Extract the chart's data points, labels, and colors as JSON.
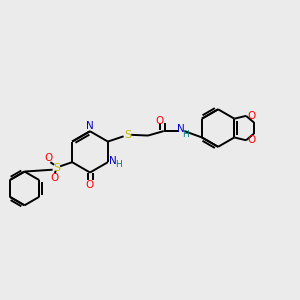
{
  "background_color": "#ebebeb",
  "figsize": [
    3.0,
    3.0
  ],
  "dpi": 100,
  "colors": {
    "C": "#000000",
    "N": "#0000cc",
    "O": "#ff0000",
    "S": "#bbbb00",
    "H": "#008080",
    "bond": "#000000"
  },
  "font": {
    "size": 7.5
  }
}
